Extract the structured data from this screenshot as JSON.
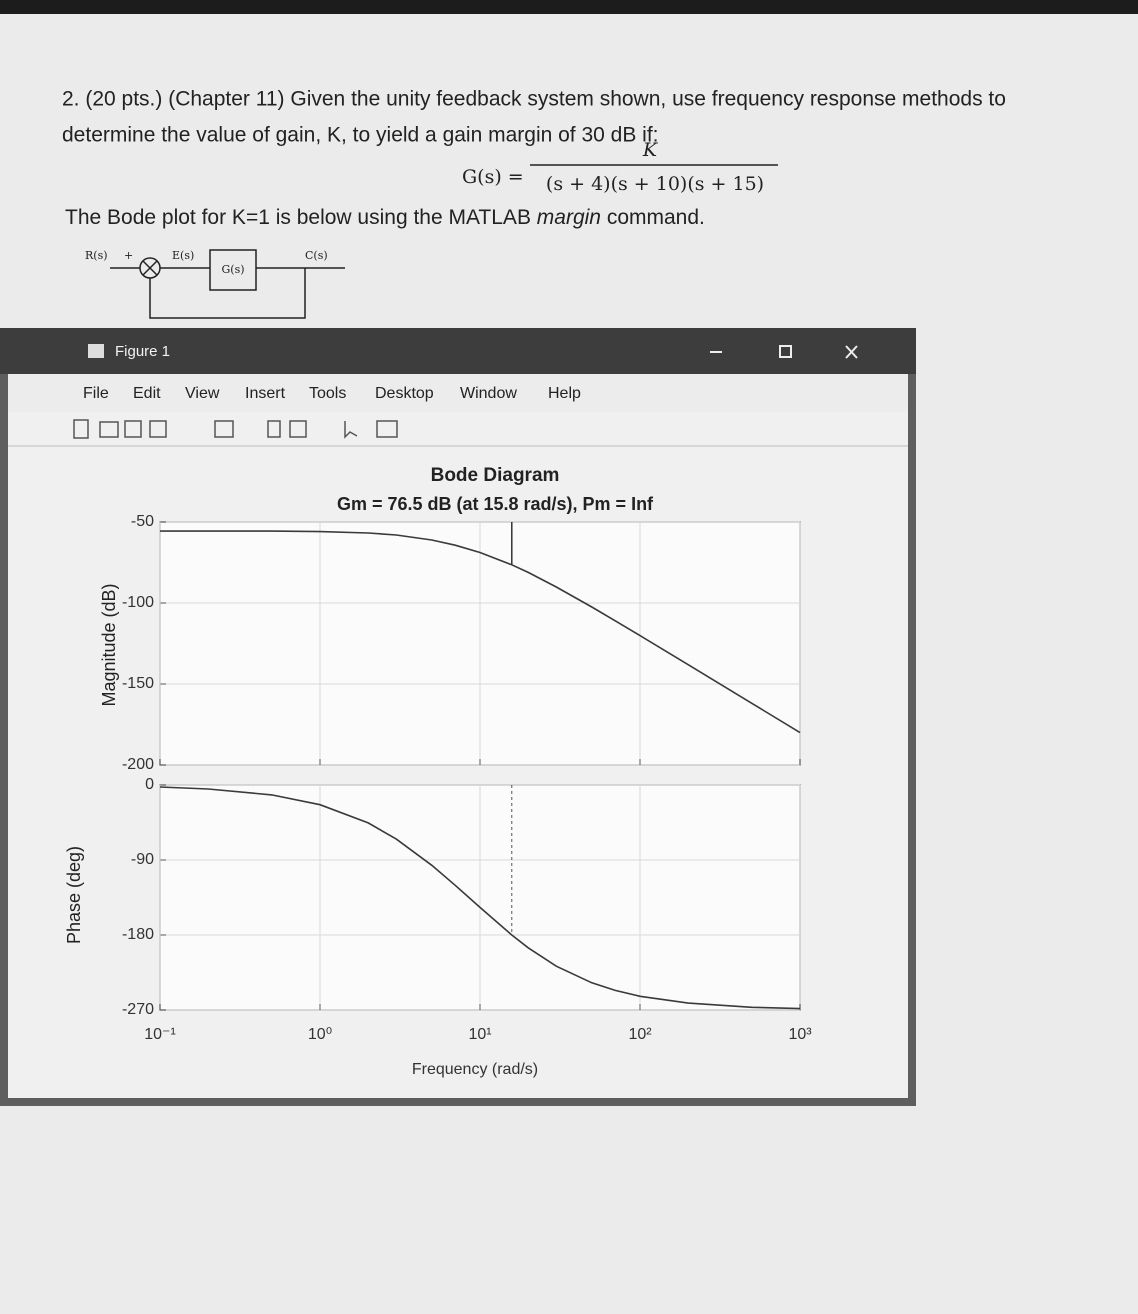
{
  "question": {
    "line1": "2. (20 pts.) (Chapter 11) Given the unity feedback system shown, use frequency response methods to",
    "line2": "determine the value of gain, K, to yield a gain margin of 30 dB if:"
  },
  "equation": {
    "lhs": "G(s) =",
    "numerator": "K",
    "denominator": "(s + 4)(s + 10)(s + 15)"
  },
  "note": {
    "before": "The Bode plot for K=1 is below using the MATLAB ",
    "emphasis": "margin",
    "after": " command."
  },
  "block_diagram": {
    "input": "R(s)",
    "plus": "+",
    "error": "E(s)",
    "block": "G(s)",
    "output": "C(s)"
  },
  "window": {
    "title": "Figure 1",
    "menu": [
      "File",
      "Edit",
      "View",
      "Insert",
      "Tools",
      "Desktop",
      "Window",
      "Help"
    ]
  },
  "chart_data": {
    "type": "line",
    "title": "Bode Diagram",
    "subtitle": "Gm = 76.5 dB (at 15.8 rad/s), Pm = Inf",
    "xlabel": "Frequency (rad/s)",
    "xscale": "log",
    "grid": true,
    "x": [
      0.1,
      0.2,
      0.5,
      1,
      2,
      3,
      5,
      7,
      10,
      15.8,
      20,
      30,
      50,
      70,
      100,
      200,
      500,
      1000
    ],
    "xlim": [
      0.1,
      1000
    ],
    "xticks": [
      {
        "value": 0.1,
        "label": "10⁻¹"
      },
      {
        "value": 1,
        "label": "10⁰"
      },
      {
        "value": 10,
        "label": "10¹"
      },
      {
        "value": 100,
        "label": "10²"
      },
      {
        "value": 1000,
        "label": "10³"
      }
    ],
    "panels": [
      {
        "ylabel": "Magnitude (dB)",
        "ylim": [
          -200,
          -50
        ],
        "yticks": [
          -50,
          -100,
          -150,
          -200
        ],
        "series": [
          {
            "color": "#0072bd",
            "values": [
              -55.6,
              -55.6,
              -55.6,
              -55.9,
              -56.8,
              -58.0,
              -61.1,
              -64.3,
              -68.8,
              -76.4,
              -81.1,
              -90.1,
              -102.5,
              -111.0,
              -120.1,
              -138.1,
              -161.9,
              -180.0
            ]
          }
        ]
      },
      {
        "ylabel": "Phase (deg)",
        "ylim": [
          -270,
          0
        ],
        "yticks": [
          0,
          -90,
          -180,
          -270
        ],
        "series": [
          {
            "color": "#0072bd",
            "values": [
              -2.4,
              -4.8,
              -11.9,
              -23.6,
              -45.5,
              -64.9,
              -96.3,
              -120.3,
              -146.9,
              -180.0,
              -195.3,
              -217.4,
              -237.4,
              -246.5,
              -253.5,
              -261.7,
              -266.7,
              -268.3
            ]
          }
        ]
      }
    ]
  }
}
